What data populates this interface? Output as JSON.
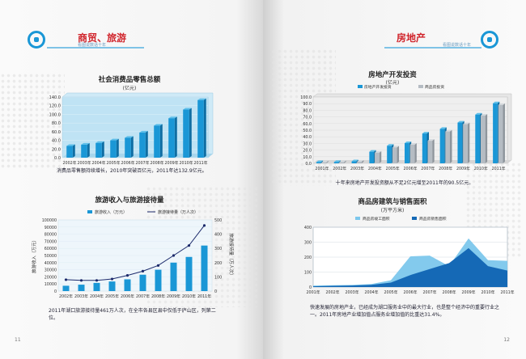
{
  "left_page": {
    "section_title": "商贸、旅游",
    "section_subtitle": "看图说数话十年",
    "page_number": "11",
    "chart1": {
      "title": "社会消费品零售总额",
      "unit": "(亿元)",
      "note": "消费品零售额持续增长，2010年突破百亿元，2011年达132.9亿元。"
    },
    "chart2": {
      "title": "旅游收入与旅游接待量",
      "note": "2011年湖口旅游接待量461万人次，在全市各县区县中仅低于庐山区，列第二位。"
    }
  },
  "right_page": {
    "section_title": "房地产",
    "section_subtitle": "看图说数话十年",
    "page_number": "12",
    "chart3": {
      "title": "房地产开发投资",
      "unit": "(亿元)",
      "note": "十年来房地产开发投资额从不足2亿元增至2011年的90.5亿元。"
    },
    "chart4": {
      "title": "商品房建筑与销售面积",
      "unit": "(万平方米)",
      "note": "快速发展的房地产业，已经成为湖口服务业中的最大行业，也是整个经济中的重要行业之一。2011年房地产业增加值占服务业增加值的比重达31.4%。"
    }
  },
  "colors": {
    "accent_red": "#d0242b",
    "bar_blue": "#1a97d6",
    "line_navy": "#1c2a6b",
    "light_blue": "#b9e2f3",
    "gray_bar": "#b5bcc3"
  },
  "chart_data": [
    {
      "type": "bar",
      "title": "社会消费品零售总额",
      "ylabel": "(亿元)",
      "categories": [
        "2002年",
        "2003年",
        "2004年",
        "2005年",
        "2006年",
        "2007年",
        "2008年",
        "2009年",
        "2010年",
        "2011年"
      ],
      "values": [
        27,
        30,
        34,
        40,
        46,
        58,
        74,
        91,
        111,
        133
      ],
      "ylim": [
        0,
        140
      ],
      "yticks": [
        "0.0",
        "20.0",
        "40.0",
        "60.0",
        "80.0",
        "100.0",
        "120.0",
        "140.0"
      ]
    },
    {
      "type": "bar",
      "title": "旅游收入与旅游接待量",
      "categories": [
        "2002年",
        "2003年",
        "2004年",
        "2005年",
        "2006年",
        "2007年",
        "2008年",
        "2009年",
        "2010年",
        "2011年"
      ],
      "series": [
        {
          "name": "旅游收入（万元）",
          "type": "bar",
          "axis": "left",
          "values": [
            7500,
            9000,
            11500,
            13500,
            16500,
            23000,
            30000,
            40000,
            48000,
            64000
          ]
        },
        {
          "name": "旅游接待量（万人次）",
          "type": "line",
          "axis": "right",
          "values": [
            80,
            75,
            75,
            85,
            110,
            140,
            180,
            250,
            320,
            461
          ]
        }
      ],
      "ylabel": "旅游收入（万元）",
      "y2label": "旅游接待量（万人次）",
      "ylim": [
        0,
        100000
      ],
      "y2lim": [
        0,
        500
      ],
      "yticks": [
        "0",
        "10000",
        "20000",
        "30000",
        "40000",
        "50000",
        "60000",
        "70000",
        "80000",
        "90000",
        "100000"
      ],
      "y2ticks": [
        "0",
        "100",
        "200",
        "300",
        "400",
        "500"
      ]
    },
    {
      "type": "bar",
      "title": "房地产开发投资",
      "ylabel": "(亿元)",
      "categories": [
        "2001年",
        "2002年",
        "2003年",
        "2004年",
        "2005年",
        "2006年",
        "2007年",
        "2008年",
        "2009年",
        "2010年",
        "2011年"
      ],
      "series": [
        {
          "name": "房地产开发投资",
          "values": [
            1.8,
            2.0,
            3.0,
            17.5,
            26.5,
            30.5,
            45.0,
            52.0,
            61.5,
            73.5,
            90.5
          ]
        },
        {
          "name": "商品房投资",
          "values": [
            1.5,
            1.8,
            2.5,
            16.0,
            24.0,
            28.0,
            34.0,
            48.0,
            59.0,
            72.0,
            88.0
          ]
        }
      ],
      "ylim": [
        0,
        100
      ],
      "yticks": [
        "0.0",
        "10.0",
        "20.0",
        "30.0",
        "40.0",
        "50.0",
        "60.0",
        "70.0",
        "80.0",
        "90.0",
        "100.0"
      ]
    },
    {
      "type": "area",
      "title": "商品房建筑与销售面积",
      "ylabel": "(万平方米)",
      "categories": [
        "2001年",
        "2002年",
        "2003年",
        "2004年",
        "2005年",
        "2006年",
        "2007年",
        "2008年",
        "2009年",
        "2010年",
        "2011年"
      ],
      "series": [
        {
          "name": "商品房竣工面积",
          "values": [
            10,
            12,
            14,
            20,
            45,
            205,
            210,
            140,
            325,
            180,
            175
          ]
        },
        {
          "name": "商品房销售面积",
          "values": [
            5,
            8,
            10,
            15,
            30,
            80,
            120,
            160,
            260,
            140,
            110
          ]
        }
      ],
      "ylim": [
        0,
        400
      ],
      "yticks": [
        "0",
        "100",
        "200",
        "300",
        "400"
      ]
    }
  ]
}
